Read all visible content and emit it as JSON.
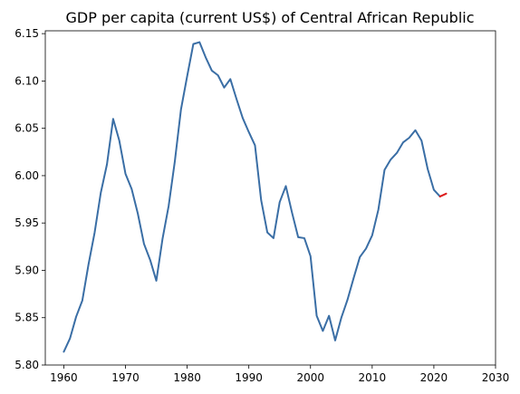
{
  "chart_data": {
    "type": "line",
    "title": "GDP per capita (current US$) of Central African Republic",
    "xlabel": "",
    "ylabel": "",
    "xlim": [
      1957,
      2030
    ],
    "ylim": [
      5.8,
      6.153
    ],
    "x_ticks": [
      1960,
      1970,
      1980,
      1990,
      2000,
      2010,
      2020,
      2030
    ],
    "y_ticks": [
      5.8,
      5.85,
      5.9,
      5.95,
      6.0,
      6.05,
      6.1,
      6.15
    ],
    "x_tick_labels": [
      "1960",
      "1970",
      "1980",
      "1990",
      "2000",
      "2010",
      "2020",
      "2030"
    ],
    "y_tick_labels": [
      "5.80",
      "5.85",
      "5.90",
      "5.95",
      "6.00",
      "6.05",
      "6.10",
      "6.15"
    ],
    "grid": false,
    "series": [
      {
        "color": "#3a6ea5",
        "x": [
          1960,
          1961,
          1962,
          1963,
          1964,
          1965,
          1966,
          1967,
          1968,
          1969,
          1970,
          1971,
          1972,
          1973,
          1974,
          1975,
          1976,
          1977,
          1978,
          1979,
          1980,
          1981,
          1982,
          1983,
          1984,
          1985,
          1986,
          1987,
          1988,
          1989,
          1990,
          1991,
          1992,
          1993,
          1994,
          1995,
          1996,
          1997,
          1998,
          1999,
          2000,
          2001,
          2002,
          2003,
          2004,
          2005,
          2006,
          2007,
          2008,
          2009,
          2010,
          2011,
          2012,
          2013,
          2014,
          2015,
          2016,
          2017,
          2018,
          2019,
          2020,
          2021
        ],
        "y": [
          5.814,
          5.828,
          5.851,
          5.868,
          5.906,
          5.94,
          5.982,
          6.012,
          6.06,
          6.037,
          6.002,
          5.986,
          5.96,
          5.928,
          5.911,
          5.889,
          5.933,
          5.968,
          6.015,
          6.07,
          6.105,
          6.139,
          6.141,
          6.125,
          6.111,
          6.106,
          6.093,
          6.102,
          6.081,
          6.061,
          6.046,
          6.032,
          5.974,
          5.94,
          5.934,
          5.972,
          5.989,
          5.961,
          5.935,
          5.934,
          5.915,
          5.852,
          5.836,
          5.852,
          5.826,
          5.85,
          5.869,
          5.892,
          5.914,
          5.923,
          5.937,
          5.964,
          6.006,
          6.017,
          6.024,
          6.035,
          6.04,
          6.048,
          6.037,
          6.007,
          5.985,
          5.978
        ]
      },
      {
        "color": "#dd1c1c",
        "x": [
          2021,
          2022
        ],
        "y": [
          5.978,
          5.981
        ]
      }
    ]
  }
}
